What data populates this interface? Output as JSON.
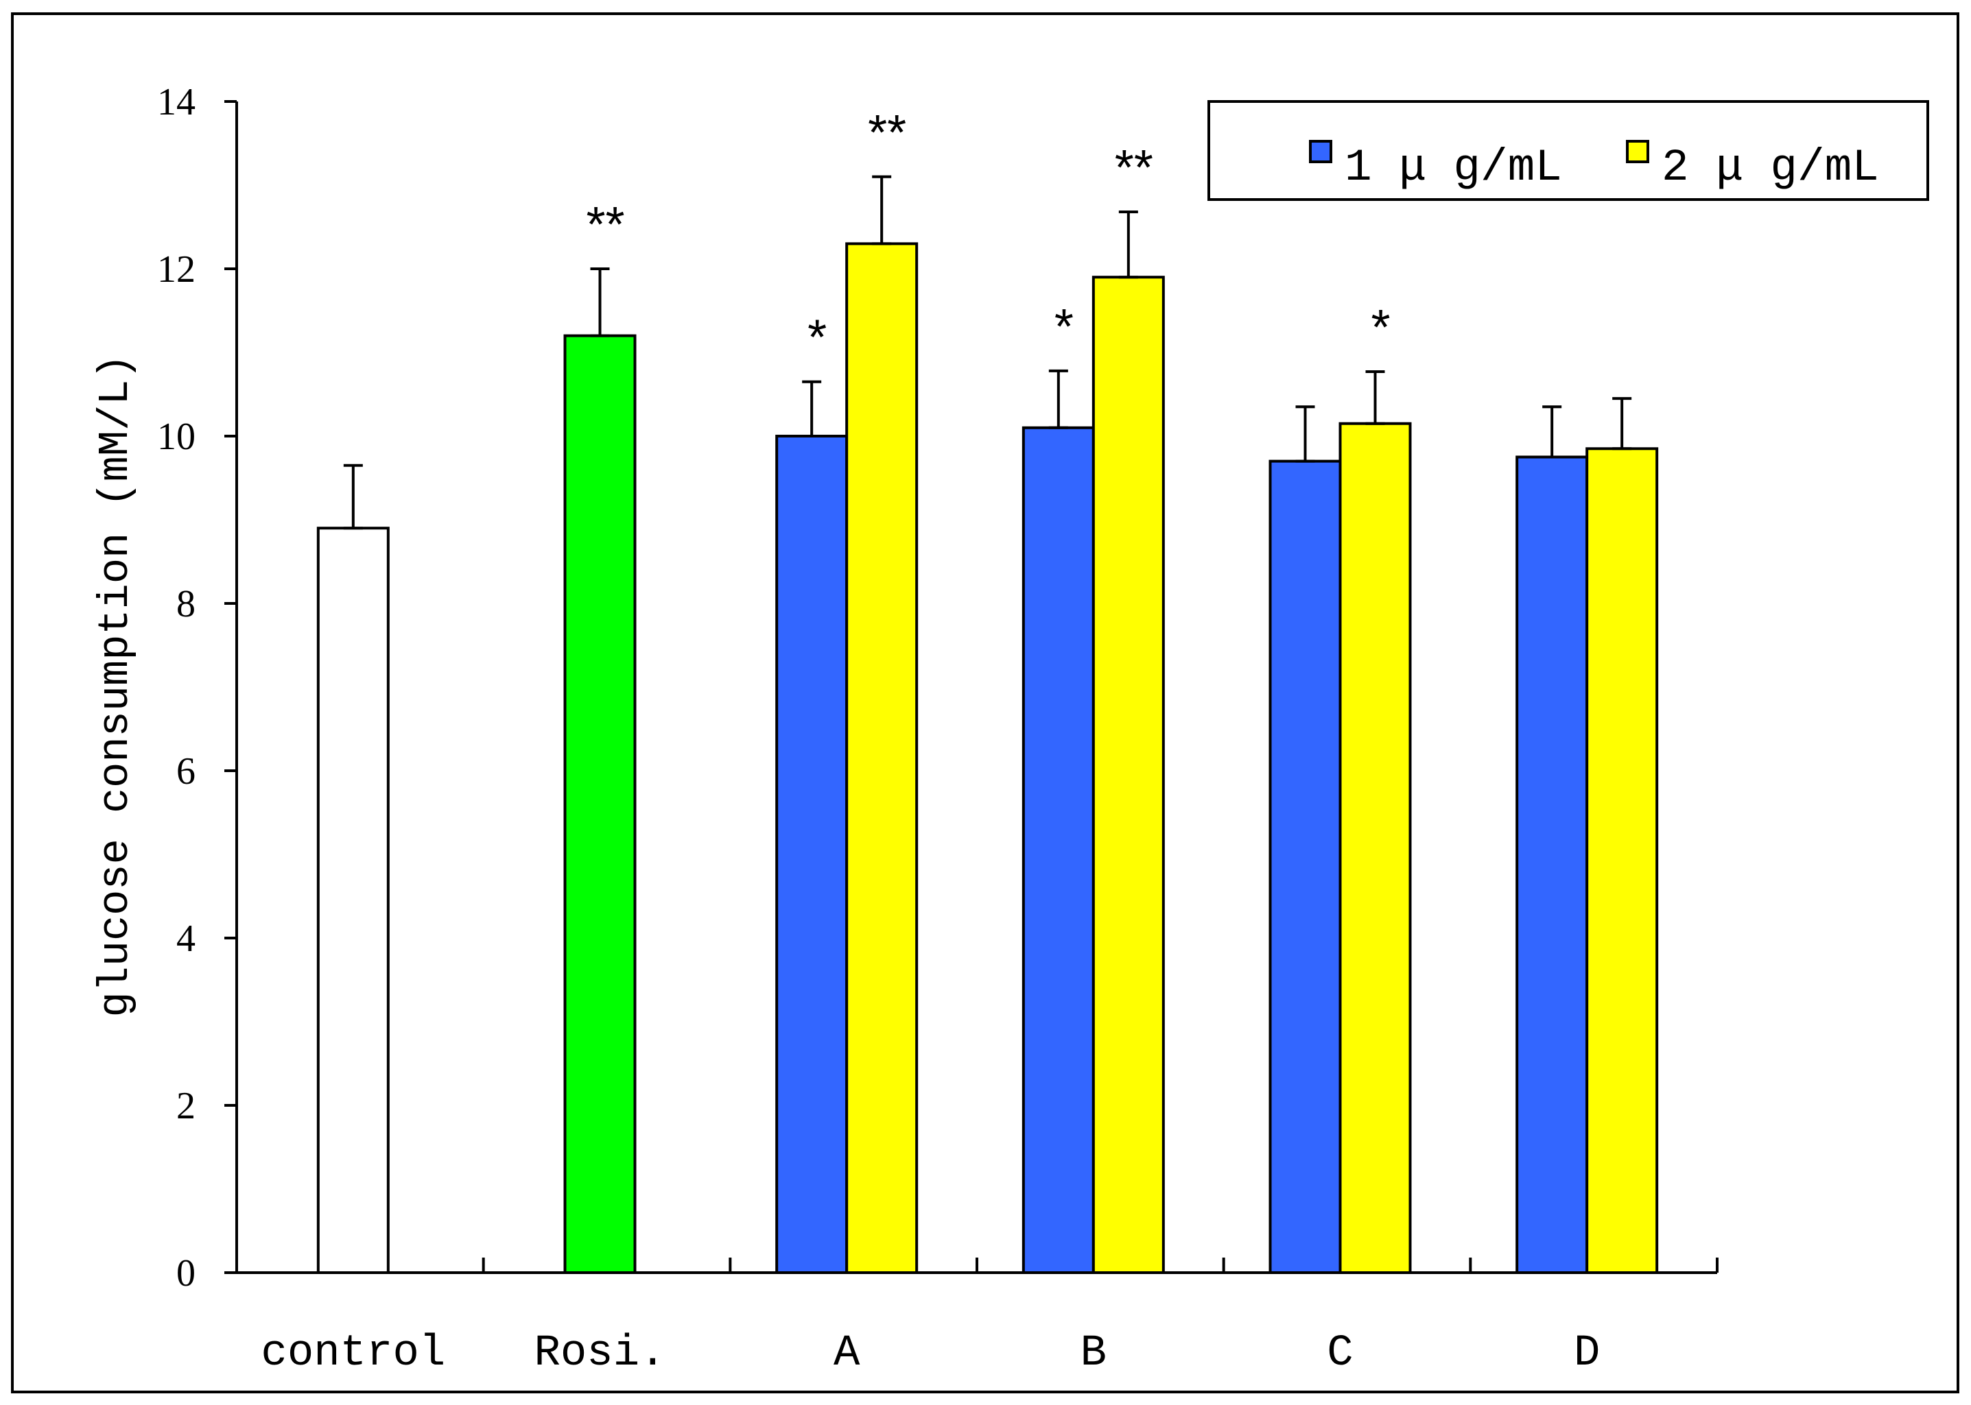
{
  "chart_data": {
    "type": "bar",
    "ylabel": "glucose consumption (mM/L)",
    "ylim": [
      0,
      14
    ],
    "yticks": [
      0,
      2,
      4,
      6,
      8,
      10,
      12,
      14
    ],
    "legend_position": "top-right",
    "legend": [
      {
        "label": "1 μ g/mL",
        "color": "#3366FF"
      },
      {
        "label": "2 μ g/mL",
        "color": "#FFFF00"
      }
    ],
    "categories": [
      "control",
      "Rosi.",
      "A",
      "B",
      "C",
      "D"
    ],
    "groups": [
      {
        "category": "control",
        "bars": [
          {
            "value": 8.9,
            "error": 0.75,
            "color": "#FFFFFF",
            "sig": ""
          }
        ]
      },
      {
        "category": "Rosi.",
        "bars": [
          {
            "value": 11.2,
            "error": 0.8,
            "color": "#00FF00",
            "sig": "**"
          }
        ]
      },
      {
        "category": "A",
        "bars": [
          {
            "series": "1 μ g/mL",
            "value": 10.0,
            "error": 0.65,
            "color": "#3366FF",
            "sig": "*"
          },
          {
            "series": "2 μ g/mL",
            "value": 12.3,
            "error": 0.8,
            "color": "#FFFF00",
            "sig": "**"
          }
        ]
      },
      {
        "category": "B",
        "bars": [
          {
            "series": "1 μ g/mL",
            "value": 10.1,
            "error": 0.68,
            "color": "#3366FF",
            "sig": "*"
          },
          {
            "series": "2 μ g/mL",
            "value": 11.9,
            "error": 0.78,
            "color": "#FFFF00",
            "sig": "**"
          }
        ]
      },
      {
        "category": "C",
        "bars": [
          {
            "series": "1 μ g/mL",
            "value": 9.7,
            "error": 0.65,
            "color": "#3366FF",
            "sig": ""
          },
          {
            "series": "2 μ g/mL",
            "value": 10.15,
            "error": 0.62,
            "color": "#FFFF00",
            "sig": "*"
          }
        ]
      },
      {
        "category": "D",
        "bars": [
          {
            "series": "1 μ g/mL",
            "value": 9.75,
            "error": 0.6,
            "color": "#3366FF",
            "sig": ""
          },
          {
            "series": "2 μ g/mL",
            "value": 9.85,
            "error": 0.6,
            "color": "#FFFF00",
            "sig": ""
          }
        ]
      }
    ]
  }
}
